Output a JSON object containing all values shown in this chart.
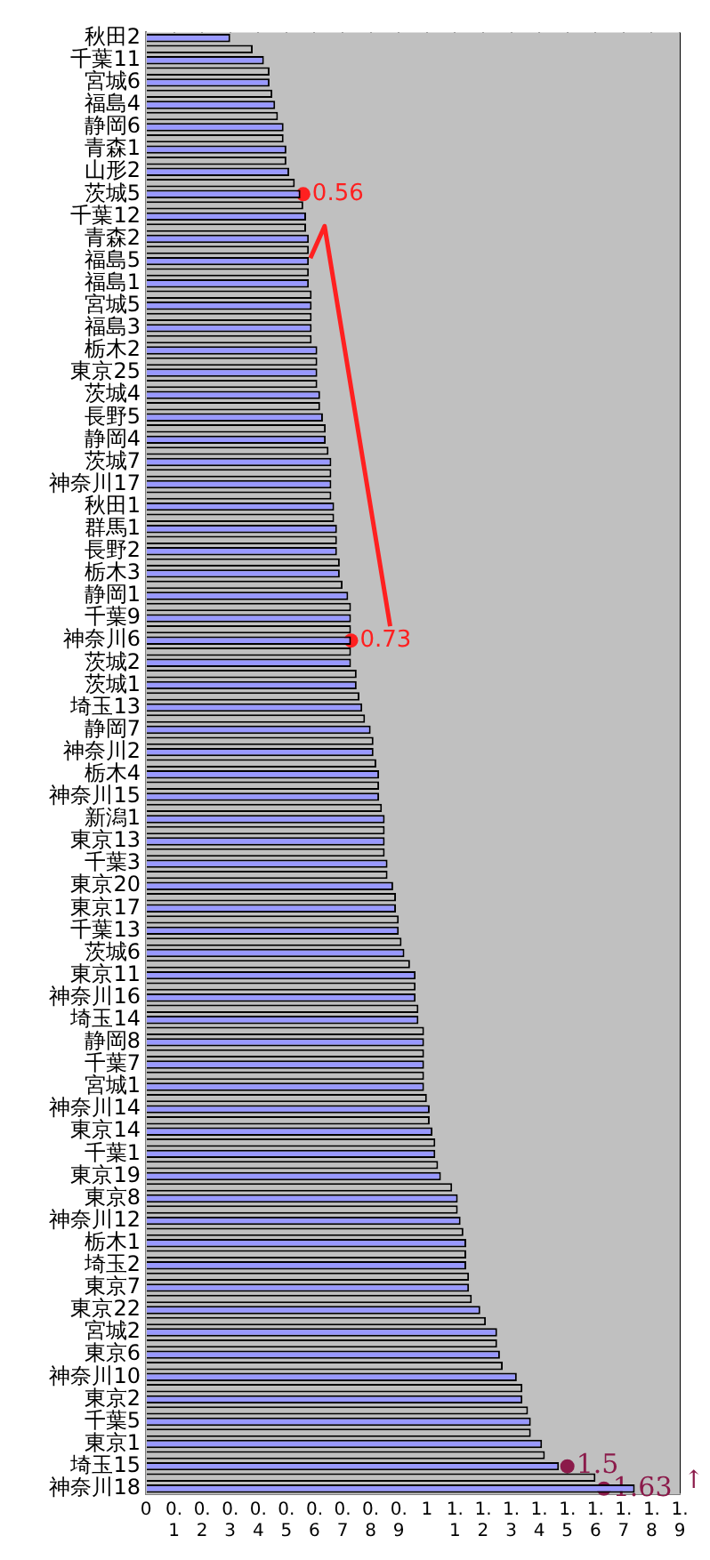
{
  "chart_data": {
    "type": "bar",
    "orientation": "horizontal",
    "categories": [
      "秋田2",
      null,
      "千葉11",
      null,
      "宮城6",
      null,
      "福島4",
      null,
      "静岡6",
      null,
      "青森1",
      null,
      "山形2",
      null,
      "茨城5",
      null,
      "千葉12",
      null,
      "青森2",
      null,
      "福島5",
      null,
      "福島1",
      null,
      "宮城5",
      null,
      "福島3",
      null,
      "栃木2",
      null,
      "東京25",
      null,
      "茨城4",
      null,
      "長野5",
      null,
      "静岡4",
      null,
      "茨城7",
      null,
      "神奈川17",
      null,
      "秋田1",
      null,
      "群馬1",
      null,
      "長野2",
      null,
      "栃木3",
      null,
      "静岡1",
      null,
      "千葉9",
      null,
      "神奈川6",
      null,
      "茨城2",
      null,
      "茨城1",
      null,
      "埼玉13",
      null,
      "静岡7",
      null,
      "神奈川2",
      null,
      "栃木4",
      null,
      "神奈川15",
      null,
      "新潟1",
      null,
      "東京13",
      null,
      "千葉3",
      null,
      "東京20",
      null,
      "東京17",
      null,
      "千葉13",
      null,
      "茨城6",
      null,
      "東京11",
      null,
      "神奈川16",
      null,
      "埼玉14",
      null,
      "静岡8",
      null,
      "千葉7",
      null,
      "宮城1",
      null,
      "神奈川14",
      null,
      "東京14",
      null,
      "千葉1",
      null,
      "東京19",
      null,
      "東京8",
      null,
      "神奈川12",
      null,
      "栃木1",
      null,
      "埼玉2",
      null,
      "東京7",
      null,
      "東京22",
      null,
      "宮城2",
      null,
      "東京6",
      null,
      "神奈川10",
      null,
      "東京2",
      null,
      "千葉5",
      null,
      "東京1",
      null,
      "埼玉15",
      null,
      "神奈川18"
    ],
    "values": [
      0.3,
      0.38,
      0.42,
      0.44,
      0.44,
      0.45,
      0.46,
      0.47,
      0.49,
      0.49,
      0.5,
      0.5,
      0.51,
      0.53,
      0.55,
      0.56,
      0.57,
      0.57,
      0.58,
      0.58,
      0.58,
      0.58,
      0.58,
      0.59,
      0.59,
      0.59,
      0.59,
      0.59,
      0.61,
      0.61,
      0.61,
      0.61,
      0.62,
      0.62,
      0.63,
      0.64,
      0.64,
      0.65,
      0.66,
      0.66,
      0.66,
      0.66,
      0.67,
      0.67,
      0.68,
      0.68,
      0.68,
      0.69,
      0.69,
      0.7,
      0.72,
      0.73,
      0.73,
      0.73,
      0.73,
      0.73,
      0.73,
      0.75,
      0.75,
      0.76,
      0.77,
      0.78,
      0.8,
      0.81,
      0.81,
      0.82,
      0.83,
      0.83,
      0.83,
      0.84,
      0.85,
      0.85,
      0.85,
      0.85,
      0.86,
      0.86,
      0.88,
      0.89,
      0.89,
      0.9,
      0.9,
      0.91,
      0.92,
      0.94,
      0.96,
      0.96,
      0.96,
      0.97,
      0.97,
      0.99,
      0.99,
      0.99,
      0.99,
      0.99,
      0.99,
      1.0,
      1.01,
      1.01,
      1.02,
      1.03,
      1.03,
      1.04,
      1.05,
      1.09,
      1.11,
      1.11,
      1.12,
      1.13,
      1.14,
      1.14,
      1.14,
      1.15,
      1.15,
      1.16,
      1.19,
      1.21,
      1.25,
      1.25,
      1.26,
      1.27,
      1.32,
      1.34,
      1.34,
      1.36,
      1.37,
      1.37,
      1.41,
      1.42,
      1.47,
      1.6,
      1.74
    ],
    "colors": [
      "#9999ff",
      "#c0c0c0",
      "#9999ff",
      "#c0c0c0",
      "#9999ff",
      "#c0c0c0",
      "#9999ff",
      "#c0c0c0",
      "#9999ff",
      "#c0c0c0",
      "#9999ff",
      "#c0c0c0",
      "#9999ff",
      "#c0c0c0",
      "#9999ff",
      "#c0c0c0",
      "#9999ff",
      "#c0c0c0",
      "#9999ff",
      "#c0c0c0",
      "#9999ff",
      "#c0c0c0",
      "#9999ff",
      "#c0c0c0",
      "#9999ff",
      "#c0c0c0",
      "#9999ff",
      "#c0c0c0",
      "#9999ff",
      "#c0c0c0",
      "#9999ff",
      "#c0c0c0",
      "#9999ff",
      "#c0c0c0",
      "#9999ff",
      "#c0c0c0",
      "#9999ff",
      "#c0c0c0",
      "#9999ff",
      "#c0c0c0",
      "#9999ff",
      "#c0c0c0",
      "#9999ff",
      "#c0c0c0",
      "#9999ff",
      "#c0c0c0",
      "#9999ff",
      "#c0c0c0",
      "#9999ff",
      "#c0c0c0",
      "#9999ff",
      "#c0c0c0",
      "#9999ff",
      "#c0c0c0",
      "#9999ff",
      "#c0c0c0",
      "#9999ff",
      "#c0c0c0",
      "#9999ff",
      "#c0c0c0",
      "#9999ff",
      "#c0c0c0",
      "#9999ff",
      "#c0c0c0",
      "#9999ff",
      "#c0c0c0",
      "#9999ff",
      "#c0c0c0",
      "#9999ff",
      "#c0c0c0",
      "#9999ff",
      "#c0c0c0",
      "#9999ff",
      "#c0c0c0",
      "#9999ff",
      "#c0c0c0",
      "#9999ff",
      "#c0c0c0",
      "#9999ff",
      "#c0c0c0",
      "#9999ff",
      "#c0c0c0",
      "#9999ff",
      "#c0c0c0",
      "#9999ff",
      "#c0c0c0",
      "#9999ff",
      "#c0c0c0",
      "#9999ff",
      "#c0c0c0",
      "#9999ff",
      "#c0c0c0",
      "#9999ff",
      "#c0c0c0",
      "#9999ff",
      "#c0c0c0",
      "#9999ff",
      "#c0c0c0",
      "#9999ff",
      "#c0c0c0",
      "#9999ff",
      "#c0c0c0",
      "#9999ff",
      "#c0c0c0",
      "#9999ff",
      "#c0c0c0",
      "#9999ff",
      "#c0c0c0",
      "#9999ff",
      "#c0c0c0",
      "#9999ff",
      "#c0c0c0",
      "#9999ff",
      "#c0c0c0",
      "#9999ff",
      "#c0c0c0",
      "#9999ff",
      "#c0c0c0",
      "#9999ff",
      "#c0c0c0",
      "#9999ff",
      "#c0c0c0",
      "#9999ff",
      "#c0c0c0",
      "#9999ff",
      "#c0c0c0",
      "#9999ff",
      "#c0c0c0",
      "#9999ff",
      "#c0c0c0",
      "#9999ff"
    ],
    "xlim": [
      0,
      1.9
    ],
    "xticks": [
      {
        "value": 0,
        "label": "0"
      },
      0.1,
      0.2,
      0.3,
      0.4,
      0.5,
      0.6,
      0.7,
      0.8,
      0.9,
      {
        "value": 1,
        "label": "1"
      },
      1.1,
      1.2,
      1.3,
      1.4,
      1.5,
      1.6,
      1.7,
      1.8,
      1.9
    ],
    "grid": "x",
    "annotations": [
      {
        "text": "0.56",
        "x": 0.56,
        "y": "茨城5"
      },
      {
        "text": "0.73",
        "x": 0.73,
        "y": "神奈川6"
      },
      {
        "text": "1.5",
        "x": 1.5,
        "y": "埼玉15"
      },
      {
        "text": "1.63",
        "x": 1.63,
        "y": "神奈川18"
      },
      "↑"
    ]
  }
}
